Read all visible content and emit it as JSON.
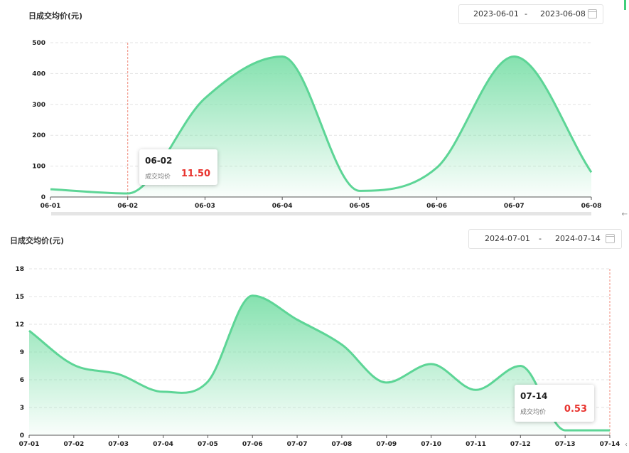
{
  "panels": [
    {
      "title": "日成交均价(元)",
      "date_start": "2023-06-01",
      "date_sep": "-",
      "date_end": "2023-06-08",
      "calendar_icon": "calendar-icon",
      "tooltip": {
        "date": "06-02",
        "label": "成交均价",
        "value": "11.50"
      },
      "chart_data": {
        "type": "area",
        "x": [
          "06-01",
          "06-02",
          "06-03",
          "06-04",
          "06-05",
          "06-06",
          "06-07",
          "06-08"
        ],
        "y": [
          25,
          11.5,
          320,
          455,
          20,
          95,
          455,
          80
        ],
        "ylim": [
          0,
          500
        ],
        "yticks": [
          0,
          100,
          200,
          300,
          400,
          500
        ],
        "highlight_x": "06-02",
        "grid": true
      }
    },
    {
      "title": "日成交均价(元)",
      "date_start": "2024-07-01",
      "date_sep": "-",
      "date_end": "2024-07-14",
      "calendar_icon": "calendar-icon",
      "tooltip": {
        "date": "07-14",
        "label": "成交均价",
        "value": "0.53"
      },
      "chart_data": {
        "type": "area",
        "x": [
          "07-01",
          "07-02",
          "07-03",
          "07-04",
          "07-05",
          "07-06",
          "07-07",
          "07-08",
          "07-09",
          "07-10",
          "07-11",
          "07-12",
          "07-13",
          "07-14"
        ],
        "y": [
          11.3,
          7.6,
          6.6,
          4.7,
          5.8,
          15.1,
          12.5,
          9.8,
          5.7,
          7.7,
          4.9,
          7.5,
          0.53,
          0.53
        ],
        "ylim": [
          0,
          18
        ],
        "yticks": [
          0,
          3,
          6,
          9,
          12,
          15,
          18
        ],
        "highlight_x": "07-14",
        "grid": true
      }
    }
  ],
  "colors": {
    "line": "#5dd596",
    "fill_top": "#7fe0ab",
    "highlight": "#f08a7a",
    "tooltip_value": "#e8322d"
  }
}
